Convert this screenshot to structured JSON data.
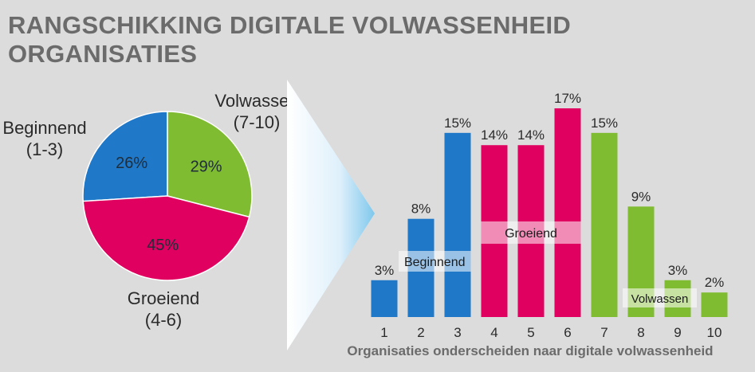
{
  "title": "RANGSCHIKKING DIGITALE VOLWASSENHEID ORGANISATIES",
  "colors": {
    "beginnend": "#1f78c8",
    "groeiend": "#e0005f",
    "volwassen": "#80bc32",
    "background": "#dcdcdc"
  },
  "chart_data": [
    {
      "type": "pie",
      "slices": [
        {
          "label_line1": "Beginnend",
          "label_line2": "(1-3)",
          "value": 26,
          "value_label": "26%",
          "color_key": "beginnend"
        },
        {
          "label_line1": "Volwassen",
          "label_line2": "(7-10)",
          "value": 29,
          "value_label": "29%",
          "color_key": "volwassen"
        },
        {
          "label_line1": "Groeiend",
          "label_line2": "(4-6)",
          "value": 45,
          "value_label": "45%",
          "color_key": "groeiend"
        }
      ]
    },
    {
      "type": "bar",
      "xlabel": "Organisaties onderscheiden naar digitale volwassenheid",
      "ylim": [
        0,
        17
      ],
      "categories": [
        "1",
        "2",
        "3",
        "4",
        "5",
        "6",
        "7",
        "8",
        "9",
        "10"
      ],
      "values": [
        3,
        8,
        15,
        14,
        14,
        17,
        15,
        9,
        3,
        2
      ],
      "value_labels": [
        "3%",
        "8%",
        "15%",
        "14%",
        "14%",
        "17%",
        "15%",
        "9%",
        "3%",
        "2%"
      ],
      "groups": [
        {
          "name": "Beginnend",
          "color_key": "beginnend",
          "from": 0,
          "to": 2
        },
        {
          "name": "Groeiend",
          "color_key": "groeiend",
          "from": 3,
          "to": 5
        },
        {
          "name": "Volwassen",
          "color_key": "volwassen",
          "from": 6,
          "to": 9
        }
      ]
    }
  ]
}
